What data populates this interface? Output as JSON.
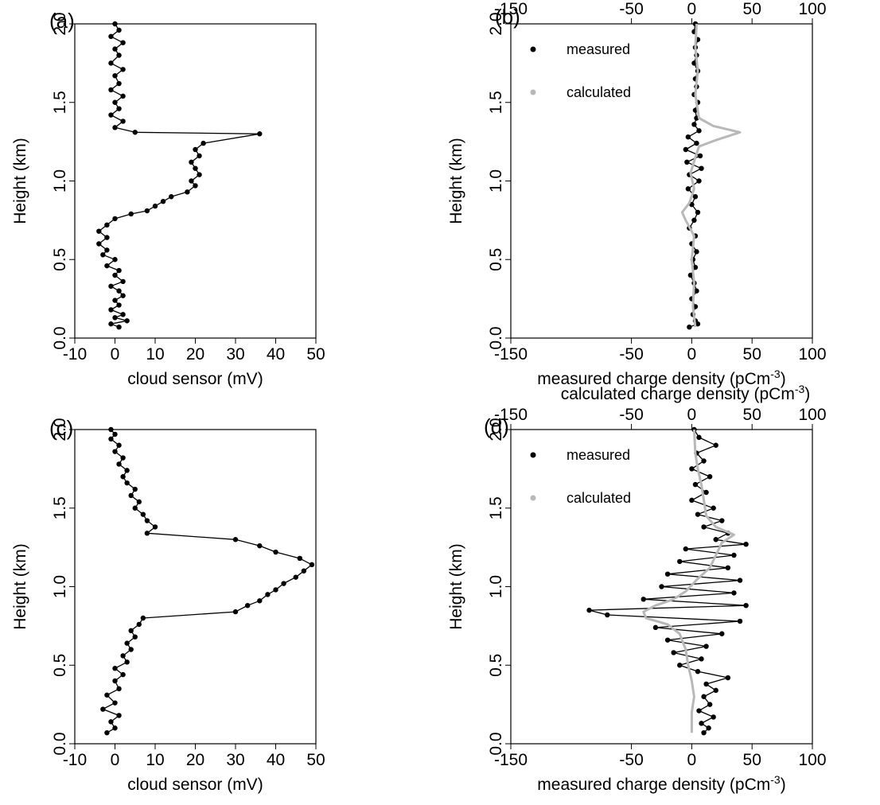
{
  "figure": {
    "panel_labels": [
      "(a)",
      "(b)",
      "(c)",
      "(d)"
    ]
  },
  "colors": {
    "measured": "#000000",
    "calculated": "#b8b8b8"
  },
  "chart_data": [
    {
      "panel": "(a)",
      "type": "scatter",
      "xlabel": "cloud sensor (mV)",
      "ylabel": "Height (km)",
      "xlim": [
        -10,
        50
      ],
      "ylim": [
        0,
        2
      ],
      "x_ticks": [
        "-10",
        "0",
        "10",
        "20",
        "30",
        "40",
        "50"
      ],
      "y_ticks": [
        "0.0",
        "0.5",
        "1.0",
        "1.5",
        "2.0"
      ],
      "series": [
        {
          "style": "points-with-lines",
          "points": [
            [
              1,
              0.07
            ],
            [
              -1,
              0.09
            ],
            [
              3,
              0.11
            ],
            [
              0,
              0.13
            ],
            [
              2,
              0.15
            ],
            [
              -1,
              0.18
            ],
            [
              1,
              0.21
            ],
            [
              0,
              0.24
            ],
            [
              2,
              0.27
            ],
            [
              1,
              0.3
            ],
            [
              -1,
              0.33
            ],
            [
              2,
              0.36
            ],
            [
              0,
              0.4
            ],
            [
              1,
              0.43
            ],
            [
              -2,
              0.46
            ],
            [
              0,
              0.5
            ],
            [
              -3,
              0.53
            ],
            [
              -2,
              0.56
            ],
            [
              -4,
              0.6
            ],
            [
              -2,
              0.64
            ],
            [
              -4,
              0.68
            ],
            [
              -2,
              0.72
            ],
            [
              0,
              0.76
            ],
            [
              4,
              0.79
            ],
            [
              8,
              0.81
            ],
            [
              10,
              0.84
            ],
            [
              12,
              0.87
            ],
            [
              14,
              0.9
            ],
            [
              18,
              0.93
            ],
            [
              20,
              0.97
            ],
            [
              19,
              1.0
            ],
            [
              21,
              1.04
            ],
            [
              20,
              1.08
            ],
            [
              19,
              1.12
            ],
            [
              21,
              1.16
            ],
            [
              20,
              1.2
            ],
            [
              22,
              1.24
            ],
            [
              36,
              1.3
            ],
            [
              5,
              1.31
            ],
            [
              0,
              1.34
            ],
            [
              2,
              1.38
            ],
            [
              -1,
              1.42
            ],
            [
              1,
              1.46
            ],
            [
              0,
              1.5
            ],
            [
              2,
              1.54
            ],
            [
              -1,
              1.58
            ],
            [
              1,
              1.62
            ],
            [
              0,
              1.67
            ],
            [
              2,
              1.71
            ],
            [
              -1,
              1.75
            ],
            [
              1,
              1.8
            ],
            [
              0,
              1.84
            ],
            [
              2,
              1.88
            ],
            [
              -1,
              1.92
            ],
            [
              1,
              1.96
            ],
            [
              0,
              2.0
            ]
          ]
        }
      ]
    },
    {
      "panel": "(b)",
      "type": "line",
      "xlabel": "measured charge density (pCm",
      "xlabel_sup": "-3",
      "xlabel_end": ")",
      "x2label": "calculated charge density (pCm",
      "x2label_sup": "-3",
      "x2label_end": ")",
      "ylabel": "Height (km)",
      "xlim": [
        -150,
        100
      ],
      "ylim": [
        0,
        2
      ],
      "x_ticks": [
        "-150",
        "-50",
        "0",
        "50",
        "100"
      ],
      "x_tick_values": [
        -150,
        -50,
        0,
        50,
        100
      ],
      "y_ticks": [
        "0.0",
        "0.5",
        "1.0",
        "1.5",
        "2.0"
      ],
      "legend": [
        "measured",
        "calculated"
      ],
      "series": [
        {
          "name": "measured",
          "style": "points-with-lines",
          "points": [
            [
              -2,
              0.07
            ],
            [
              5,
              0.09
            ],
            [
              3,
              0.11
            ],
            [
              1,
              0.15
            ],
            [
              3,
              0.2
            ],
            [
              0,
              0.25
            ],
            [
              4,
              0.3
            ],
            [
              2,
              0.35
            ],
            [
              -1,
              0.4
            ],
            [
              3,
              0.45
            ],
            [
              1,
              0.5
            ],
            [
              4,
              0.55
            ],
            [
              0,
              0.6
            ],
            [
              3,
              0.65
            ],
            [
              -2,
              0.7
            ],
            [
              2,
              0.75
            ],
            [
              5,
              0.8
            ],
            [
              0,
              0.85
            ],
            [
              3,
              0.9
            ],
            [
              -3,
              0.95
            ],
            [
              6,
              1.0
            ],
            [
              -2,
              1.04
            ],
            [
              8,
              1.08
            ],
            [
              -4,
              1.12
            ],
            [
              7,
              1.16
            ],
            [
              -5,
              1.2
            ],
            [
              4,
              1.24
            ],
            [
              -3,
              1.28
            ],
            [
              6,
              1.32
            ],
            [
              2,
              1.36
            ],
            [
              4,
              1.4
            ],
            [
              3,
              1.45
            ],
            [
              5,
              1.5
            ],
            [
              2,
              1.55
            ],
            [
              4,
              1.6
            ],
            [
              3,
              1.65
            ],
            [
              5,
              1.7
            ],
            [
              2,
              1.75
            ],
            [
              4,
              1.8
            ],
            [
              3,
              1.85
            ],
            [
              5,
              1.9
            ],
            [
              2,
              1.95
            ],
            [
              3,
              2.0
            ]
          ]
        },
        {
          "name": "calculated",
          "style": "line",
          "points": [
            [
              3,
              0.07
            ],
            [
              1,
              0.2
            ],
            [
              2,
              0.35
            ],
            [
              0,
              0.5
            ],
            [
              2,
              0.65
            ],
            [
              -5,
              0.75
            ],
            [
              -8,
              0.8
            ],
            [
              -2,
              0.86
            ],
            [
              2,
              0.95
            ],
            [
              -1,
              1.05
            ],
            [
              3,
              1.15
            ],
            [
              6,
              1.22
            ],
            [
              20,
              1.26
            ],
            [
              40,
              1.31
            ],
            [
              18,
              1.35
            ],
            [
              6,
              1.4
            ],
            [
              3,
              1.55
            ],
            [
              5,
              1.7
            ],
            [
              3,
              1.85
            ],
            [
              4,
              2.0
            ]
          ]
        }
      ]
    },
    {
      "panel": "(c)",
      "type": "scatter",
      "xlabel": "cloud sensor (mV)",
      "ylabel": "Height (km)",
      "xlim": [
        -10,
        50
      ],
      "ylim": [
        0,
        2
      ],
      "x_ticks": [
        "-10",
        "0",
        "10",
        "20",
        "30",
        "40",
        "50"
      ],
      "y_ticks": [
        "0.0",
        "0.5",
        "1.0",
        "1.5",
        "2.0"
      ],
      "series": [
        {
          "style": "points-with-lines",
          "points": [
            [
              -2,
              0.07
            ],
            [
              0,
              0.1
            ],
            [
              -1,
              0.14
            ],
            [
              1,
              0.18
            ],
            [
              -3,
              0.22
            ],
            [
              0,
              0.26
            ],
            [
              -2,
              0.31
            ],
            [
              1,
              0.35
            ],
            [
              0,
              0.4
            ],
            [
              2,
              0.44
            ],
            [
              0,
              0.48
            ],
            [
              3,
              0.52
            ],
            [
              2,
              0.56
            ],
            [
              4,
              0.6
            ],
            [
              3,
              0.64
            ],
            [
              5,
              0.68
            ],
            [
              4,
              0.72
            ],
            [
              6,
              0.76
            ],
            [
              7,
              0.8
            ],
            [
              30,
              0.84
            ],
            [
              33,
              0.88
            ],
            [
              36,
              0.91
            ],
            [
              38,
              0.95
            ],
            [
              40,
              0.98
            ],
            [
              42,
              1.02
            ],
            [
              45,
              1.06
            ],
            [
              47,
              1.1
            ],
            [
              49,
              1.14
            ],
            [
              46,
              1.18
            ],
            [
              40,
              1.22
            ],
            [
              36,
              1.26
            ],
            [
              30,
              1.3
            ],
            [
              8,
              1.34
            ],
            [
              10,
              1.38
            ],
            [
              8,
              1.42
            ],
            [
              7,
              1.46
            ],
            [
              5,
              1.5
            ],
            [
              6,
              1.54
            ],
            [
              4,
              1.58
            ],
            [
              5,
              1.62
            ],
            [
              3,
              1.66
            ],
            [
              2,
              1.7
            ],
            [
              3,
              1.74
            ],
            [
              1,
              1.78
            ],
            [
              2,
              1.82
            ],
            [
              0,
              1.86
            ],
            [
              1,
              1.9
            ],
            [
              -1,
              1.94
            ],
            [
              0,
              1.97
            ],
            [
              -1,
              2.0
            ]
          ]
        }
      ]
    },
    {
      "panel": "(d)",
      "type": "line",
      "xlabel": "measured charge density (pCm",
      "xlabel_sup": "-3",
      "xlabel_end": ")",
      "x2label": "calculated charge density (pCm",
      "x2label_sup": "-3",
      "x2label_end": ")",
      "ylabel": "Height (km)",
      "xlim": [
        -150,
        100
      ],
      "ylim": [
        0,
        2
      ],
      "x_ticks": [
        "-150",
        "-50",
        "0",
        "50",
        "100"
      ],
      "x_tick_values": [
        -150,
        -50,
        0,
        50,
        100
      ],
      "y_ticks": [
        "0.0",
        "0.5",
        "1.0",
        "1.5",
        "2.0"
      ],
      "legend": [
        "measured",
        "calculated"
      ],
      "series": [
        {
          "name": "measured",
          "style": "points-with-lines",
          "points": [
            [
              10,
              0.07
            ],
            [
              14,
              0.1
            ],
            [
              8,
              0.13
            ],
            [
              18,
              0.17
            ],
            [
              6,
              0.21
            ],
            [
              15,
              0.25
            ],
            [
              10,
              0.3
            ],
            [
              20,
              0.34
            ],
            [
              12,
              0.38
            ],
            [
              30,
              0.42
            ],
            [
              5,
              0.46
            ],
            [
              -10,
              0.5
            ],
            [
              8,
              0.54
            ],
            [
              -15,
              0.58
            ],
            [
              12,
              0.62
            ],
            [
              -20,
              0.66
            ],
            [
              25,
              0.7
            ],
            [
              -30,
              0.74
            ],
            [
              40,
              0.78
            ],
            [
              -70,
              0.82
            ],
            [
              -85,
              0.85
            ],
            [
              45,
              0.88
            ],
            [
              -40,
              0.92
            ],
            [
              35,
              0.96
            ],
            [
              -25,
              1.0
            ],
            [
              40,
              1.04
            ],
            [
              -20,
              1.08
            ],
            [
              30,
              1.12
            ],
            [
              -10,
              1.16
            ],
            [
              35,
              1.2
            ],
            [
              -5,
              1.24
            ],
            [
              45,
              1.27
            ],
            [
              20,
              1.3
            ],
            [
              30,
              1.34
            ],
            [
              10,
              1.38
            ],
            [
              25,
              1.42
            ],
            [
              5,
              1.46
            ],
            [
              18,
              1.5
            ],
            [
              0,
              1.55
            ],
            [
              12,
              1.6
            ],
            [
              3,
              1.65
            ],
            [
              15,
              1.7
            ],
            [
              0,
              1.75
            ],
            [
              10,
              1.8
            ],
            [
              4,
              1.85
            ],
            [
              20,
              1.9
            ],
            [
              6,
              1.95
            ],
            [
              2,
              2.0
            ]
          ]
        },
        {
          "name": "calculated",
          "style": "line",
          "points": [
            [
              0,
              0.07
            ],
            [
              0,
              0.2
            ],
            [
              2,
              0.3
            ],
            [
              0,
              0.4
            ],
            [
              -3,
              0.5
            ],
            [
              -5,
              0.6
            ],
            [
              -10,
              0.7
            ],
            [
              -20,
              0.76
            ],
            [
              -38,
              0.8
            ],
            [
              -40,
              0.84
            ],
            [
              -30,
              0.88
            ],
            [
              -15,
              0.92
            ],
            [
              -5,
              0.97
            ],
            [
              5,
              1.05
            ],
            [
              15,
              1.12
            ],
            [
              20,
              1.2
            ],
            [
              25,
              1.28
            ],
            [
              35,
              1.33
            ],
            [
              20,
              1.38
            ],
            [
              12,
              1.45
            ],
            [
              10,
              1.55
            ],
            [
              8,
              1.65
            ],
            [
              5,
              1.75
            ],
            [
              3,
              1.85
            ],
            [
              2,
              2.0
            ]
          ]
        }
      ]
    }
  ]
}
